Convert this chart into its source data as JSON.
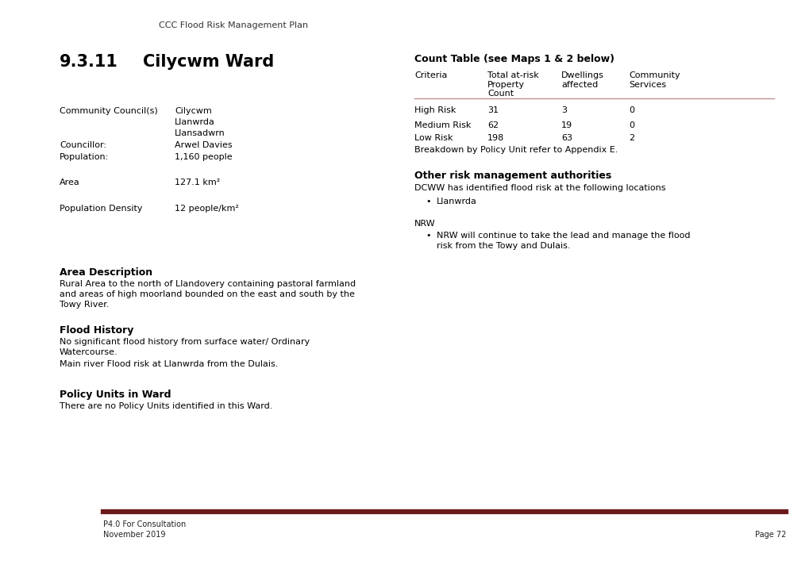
{
  "header_text": "CCC Flood Risk Management Plan",
  "section_number": "9.3.11",
  "section_title": "Cilycwm Ward",
  "count_table_title": "Count Table (see Maps 1 & 2 below)",
  "table_headers_col0": "Criteria",
  "table_headers_col1": "Total at-risk\nProperty\nCount",
  "table_headers_col2": "Dwellings\naffected",
  "table_headers_col3": "Community\nServices",
  "table_rows": [
    [
      "High Risk",
      "31",
      "3",
      "0"
    ],
    [
      "Medium Risk",
      "62",
      "19",
      "0"
    ],
    [
      "Low Risk",
      "198",
      "63",
      "2"
    ]
  ],
  "table_note": "Breakdown by Policy Unit refer to Appendix E.",
  "other_risk_title": "Other risk management authorities",
  "dcww_text": "DCWW has identified flood risk at the following locations",
  "dcww_bullet": "Llanwrda",
  "nrw_label": "NRW",
  "nrw_bullet_line1": "NRW will continue to take the lead and manage the flood",
  "nrw_bullet_line2": "risk from the Towy and Dulais.",
  "area_desc_title": "Area Description",
  "area_desc_line1": "Rural Area to the north of Llandovery containing pastoral farmland",
  "area_desc_line2": "and areas of high moorland bounded on the east and south by the",
  "area_desc_line3": "Towy River.",
  "flood_history_title": "Flood History",
  "flood_history_text1a": "No significant flood history from surface water/ Ordinary",
  "flood_history_text1b": "Watercourse.",
  "flood_history_text2": "Main river Flood risk at Llanwrda from the Dulais.",
  "policy_units_title": "Policy Units in Ward",
  "policy_units_text": "There are no Policy Units identified in this Ward.",
  "comm_council_label": "Community Council(s)",
  "comm_council_val1": "Cilycwm",
  "comm_council_val2": "Llanwrda",
  "comm_council_val3": "Llansadwrn",
  "councillor_label": "Councillor:",
  "councillor_val": "Arwel Davies",
  "population_label": "Population:",
  "population_val": "1,160 people",
  "area_label": "Area",
  "area_val": "127.1 km²",
  "pop_density_label": "Population Density",
  "pop_density_val": "12 people/km²",
  "footer_line_color": "#6B1A1A",
  "footer_text1": "P4.0 For Consultation",
  "footer_text2": "November 2019",
  "footer_page": "Page 72",
  "bg_color": "#ffffff",
  "text_color": "#000000",
  "separator_color": "#c09090"
}
